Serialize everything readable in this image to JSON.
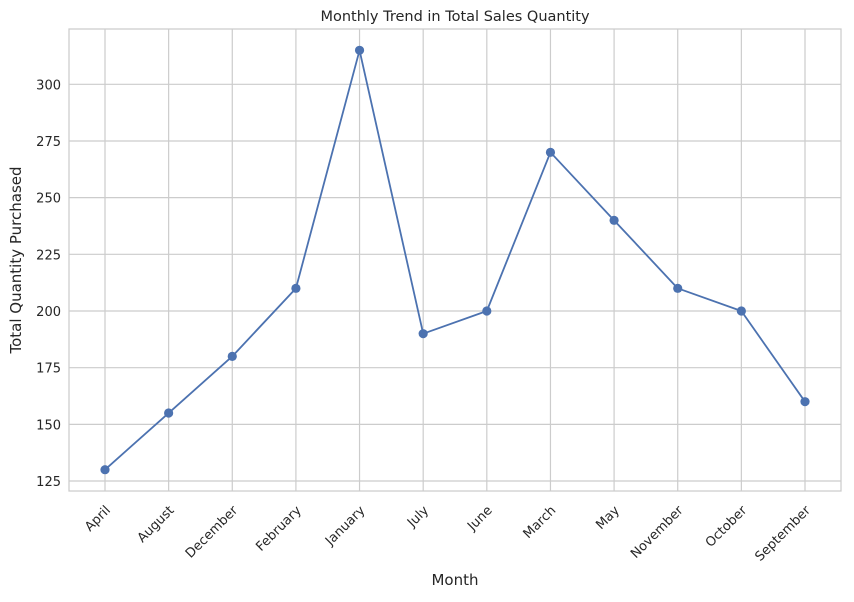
{
  "chart_data": {
    "type": "line",
    "title": "Monthly Trend in Total Sales Quantity",
    "xlabel": "Month",
    "ylabel": "Total Quantity Purchased",
    "categories": [
      "April",
      "August",
      "December",
      "February",
      "January",
      "July",
      "June",
      "March",
      "May",
      "November",
      "October",
      "September"
    ],
    "series": [
      {
        "values": [
          130,
          155,
          180,
          210,
          315,
          190,
          200,
          270,
          240,
          210,
          200,
          160
        ]
      }
    ],
    "yticks": [
      125,
      150,
      175,
      200,
      225,
      250,
      275,
      300
    ],
    "ylim": [
      120.6,
      324.4
    ],
    "grid": true,
    "colors": {
      "line": "#4c72b0",
      "grid": "#cccccc",
      "axes": "#cccccc"
    }
  }
}
